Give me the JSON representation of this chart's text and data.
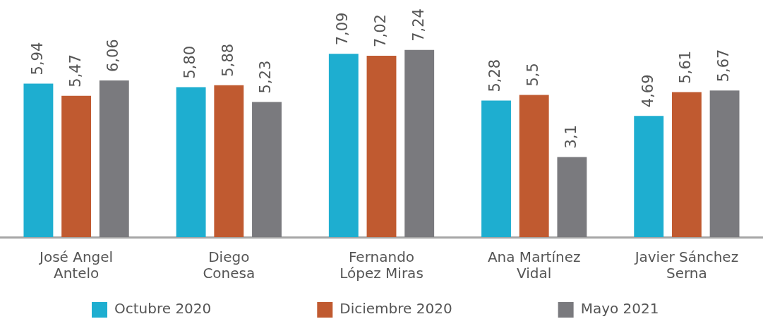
{
  "chart_data": {
    "type": "bar",
    "categories": [
      "José Angel\nAntelo",
      "Diego\nConesa",
      "Fernando\nLópez Miras",
      "Ana Martínez\nVidal",
      "Javier Sánchez\nSerna"
    ],
    "series": [
      {
        "name": "Octubre 2020",
        "color": "#1eaed0",
        "values": [
          5.94,
          5.8,
          7.09,
          5.28,
          4.69
        ],
        "value_labels": [
          "5,94",
          "5,80",
          "7,09",
          "5,28",
          "4,69"
        ]
      },
      {
        "name": "Diciembre 2020",
        "color": "#c05a30",
        "values": [
          5.47,
          5.88,
          7.02,
          5.5,
          5.61
        ],
        "value_labels": [
          "5,47",
          "5,88",
          "7,02",
          "5,5",
          "5,61"
        ]
      },
      {
        "name": "Mayo 2021",
        "color": "#7a7a7e",
        "values": [
          6.06,
          5.23,
          7.24,
          3.1,
          5.67
        ],
        "value_labels": [
          "6,06",
          "5,23",
          "7,24",
          "3,1",
          "5,67"
        ]
      }
    ],
    "legend": "bottom",
    "tick_labels": "x"
  }
}
